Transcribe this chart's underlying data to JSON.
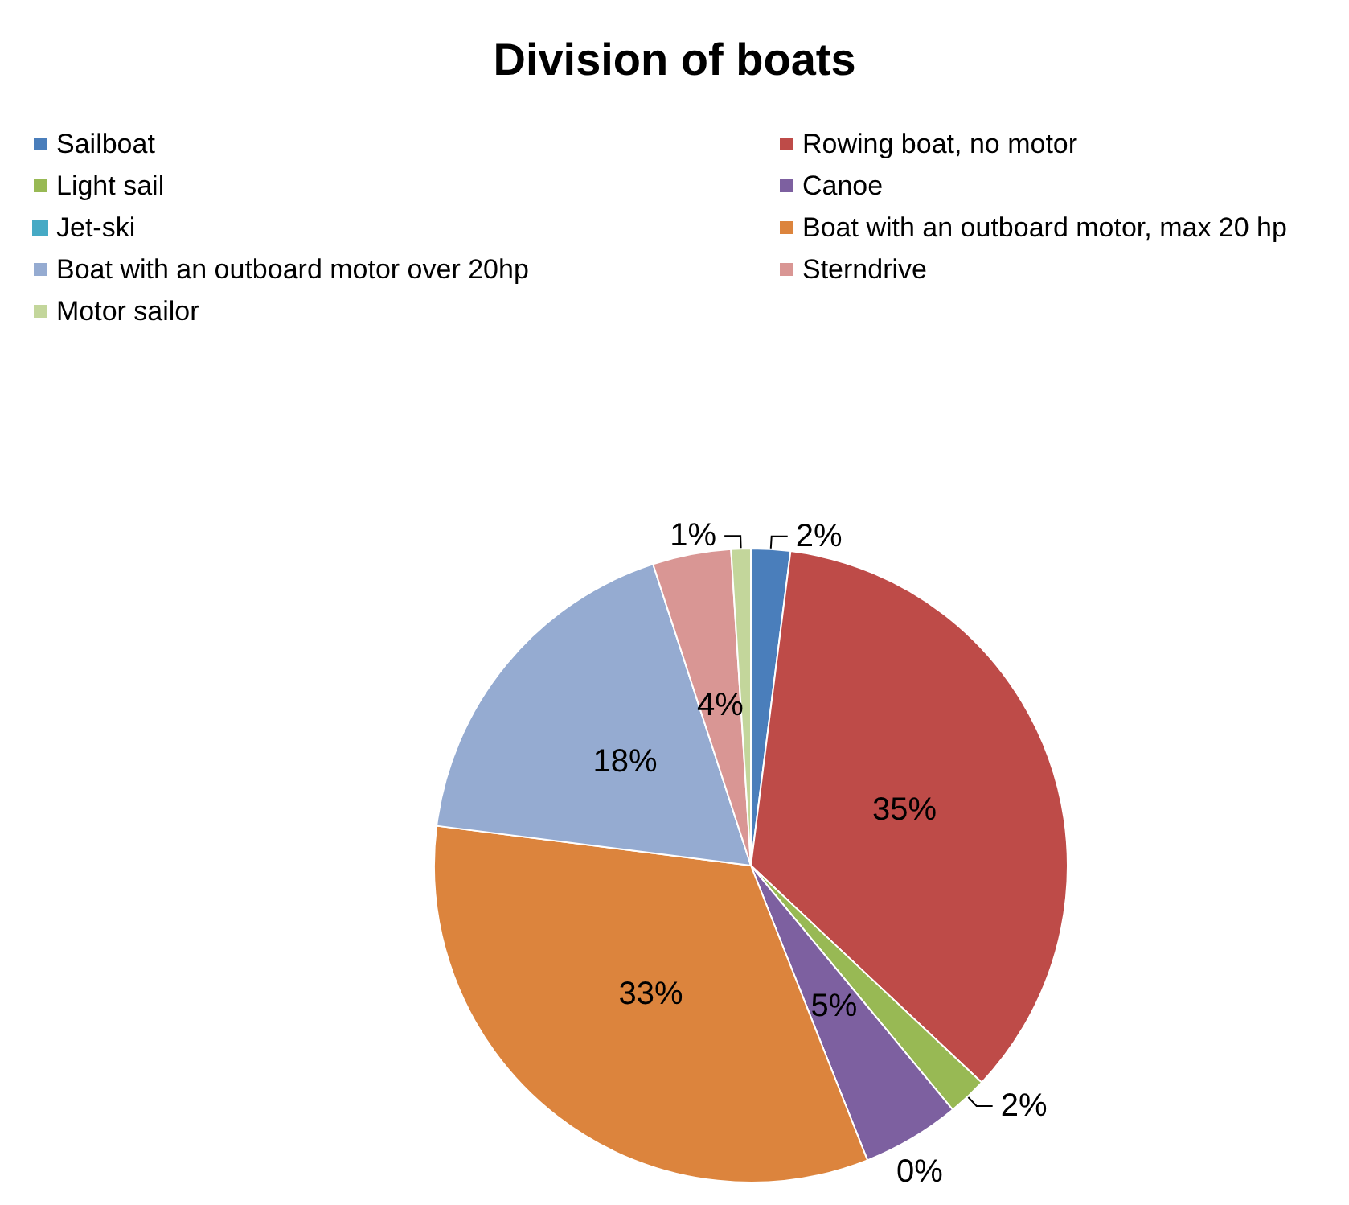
{
  "chart_data": {
    "type": "pie",
    "title": "Division of boats",
    "categories": [
      "Sailboat",
      "Rowing boat, no motor",
      "Light sail",
      "Canoe",
      "Jet-ski",
      "Boat with an outboard motor, max 20 hp",
      "Boat with an outboard motor over 20hp",
      "Sterndrive",
      "Motor sailor"
    ],
    "values": [
      2,
      35,
      2,
      5,
      0,
      33,
      18,
      4,
      1
    ],
    "value_labels": [
      "2%",
      "35%",
      "2%",
      "5%",
      "0%",
      "33%",
      "18%",
      "4%",
      "1%"
    ],
    "colors": [
      "#4a7ebb",
      "#be4b48",
      "#98b954",
      "#7d60a0",
      "#46aac5",
      "#dc843d",
      "#95abd1",
      "#d99694",
      "#c3d69b"
    ],
    "legend": "top"
  }
}
